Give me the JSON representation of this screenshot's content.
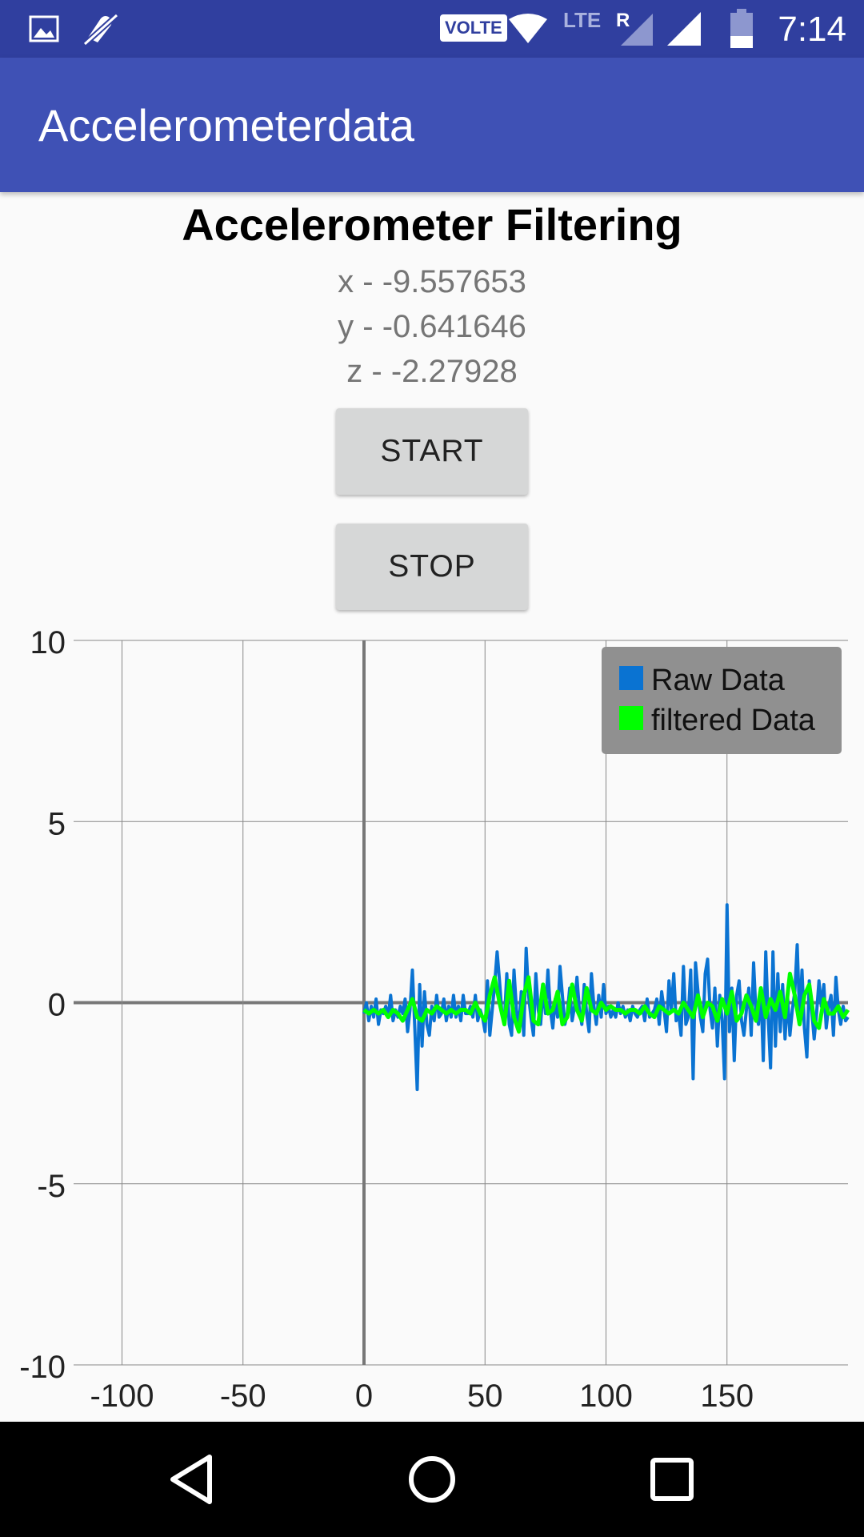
{
  "status_bar": {
    "time": "7:14",
    "volte_label": "VOLTE",
    "network_label": "LTE",
    "roaming_label": "R",
    "icons": [
      "gallery-icon",
      "mute-icon",
      "wifi-icon",
      "signal-icon",
      "battery-icon"
    ]
  },
  "app_bar": {
    "title": "Accelerometerdata"
  },
  "main": {
    "heading": "Accelerometer Filtering",
    "x_reading": "x - -9.557653",
    "y_reading": "y - -0.641646",
    "z_reading": "z - -2.27928",
    "start_label": "START",
    "stop_label": "STOP"
  },
  "chart_data": {
    "type": "line",
    "title": "",
    "xlabel": "",
    "ylabel": "",
    "xlim": [
      -120,
      200
    ],
    "ylim": [
      -10,
      10
    ],
    "x_ticks": [
      -100,
      -50,
      0,
      50,
      100,
      150
    ],
    "y_ticks": [
      10,
      5,
      0,
      -5,
      -10
    ],
    "grid": true,
    "legend_position": "top-right",
    "legend_background": "#909090",
    "series": [
      {
        "name": "Raw Data",
        "color": "#0a73d2",
        "x": [
          0,
          1,
          2,
          3,
          4,
          5,
          6,
          7,
          8,
          9,
          10,
          11,
          12,
          13,
          14,
          15,
          16,
          17,
          18,
          19,
          20,
          21,
          22,
          23,
          24,
          25,
          26,
          27,
          28,
          29,
          30,
          31,
          32,
          33,
          34,
          35,
          36,
          37,
          38,
          39,
          40,
          41,
          42,
          43,
          44,
          45,
          46,
          47,
          48,
          49,
          50,
          51,
          52,
          53,
          54,
          55,
          56,
          57,
          58,
          59,
          60,
          61,
          62,
          63,
          64,
          65,
          66,
          67,
          68,
          69,
          70,
          71,
          72,
          73,
          74,
          75,
          76,
          77,
          78,
          79,
          80,
          81,
          82,
          83,
          84,
          85,
          86,
          87,
          88,
          89,
          90,
          91,
          92,
          93,
          94,
          95,
          96,
          97,
          98,
          99,
          100,
          101,
          102,
          103,
          104,
          105,
          106,
          107,
          108,
          109,
          110,
          111,
          112,
          113,
          114,
          115,
          116,
          117,
          118,
          119,
          120,
          121,
          122,
          123,
          124,
          125,
          126,
          127,
          128,
          129,
          130,
          131,
          132,
          133,
          134,
          135,
          136,
          137,
          138,
          139,
          140,
          141,
          142,
          143,
          144,
          145,
          146,
          147,
          148,
          149,
          150,
          151,
          152,
          153,
          154,
          155,
          156,
          157,
          158,
          159,
          160,
          161,
          162,
          163,
          164,
          165,
          166,
          167,
          168,
          169,
          170,
          171,
          172,
          173,
          174,
          175,
          176,
          177,
          178,
          179,
          180,
          181,
          182,
          183,
          184,
          185,
          186,
          187,
          188,
          189,
          190,
          191,
          192,
          193,
          194,
          195,
          196,
          197,
          198,
          199,
          200
        ],
        "y": [
          -0.3,
          0,
          -0.5,
          -0.1,
          -0.4,
          0.1,
          -0.6,
          -0.2,
          -0.3,
          -0.1,
          -0.4,
          0.2,
          -0.5,
          -0.2,
          -0.4,
          -0.1,
          -0.3,
          0.1,
          -0.8,
          -0.2,
          0.9,
          -0.7,
          -2.4,
          0.5,
          -1.2,
          0.3,
          -0.6,
          -0.9,
          -0.1,
          -0.5,
          0.2,
          -0.4,
          -0.3,
          0.1,
          -0.5,
          -0.1,
          -0.4,
          0.2,
          -0.4,
          -0.1,
          -0.5,
          0.2,
          -0.3,
          -0.3,
          -0.1,
          -0.4,
          0.2,
          -0.5,
          -0.2,
          -0.4,
          -0.8,
          0.6,
          -0.9,
          -0.2,
          0.5,
          1.4,
          0.6,
          -0.3,
          -0.5,
          0.8,
          -0.6,
          -0.9,
          0.9,
          -0.2,
          -0.7,
          0.3,
          -0.9,
          1.5,
          0.2,
          -0.4,
          -0.9,
          0.8,
          -0.2,
          -0.6,
          0.4,
          -0.3,
          0.9,
          -0.2,
          -0.7,
          0.1,
          -0.4,
          1.0,
          0.2,
          -0.6,
          -0.3,
          0.4,
          -0.5,
          -0.1,
          0.7,
          -0.2,
          -0.6,
          0.5,
          -0.3,
          -0.8,
          0.8,
          -0.1,
          -0.6,
          0.2,
          -0.4,
          0.5,
          -0.3,
          -0.1,
          -0.4,
          -0.2,
          -0.4,
          0,
          -0.3,
          -0.1,
          -0.4,
          -0.2,
          -0.5,
          -0.1,
          -0.3,
          -0.4,
          -0.2,
          -0.1,
          -0.5,
          0.1,
          -0.4,
          -0.3,
          -0.2,
          0.1,
          -0.6,
          0.3,
          -0.2,
          -0.8,
          0.6,
          -0.2,
          0.8,
          -0.5,
          -0.3,
          -0.9,
          1.0,
          -0.6,
          -0.4,
          0.9,
          -2.1,
          1.1,
          0.3,
          -0.4,
          -0.8,
          0.8,
          1.2,
          -0.2,
          -0.7,
          0.4,
          -1.2,
          0.2,
          -0.5,
          -2.1,
          2.7,
          -0.8,
          0.4,
          -1.6,
          0.2,
          0.6,
          -0.5,
          -0.9,
          -0.2,
          0.4,
          -0.9,
          1.1,
          -0.3,
          -0.6,
          0.4,
          -1.6,
          1.4,
          -0.4,
          -1.8,
          1.4,
          -1.2,
          0.8,
          -0.8,
          0.5,
          -1.0,
          0.2,
          -0.9,
          -0.2,
          0.3,
          1.6,
          -0.4,
          0.9,
          -0.7,
          -1.5,
          0.6,
          -0.2,
          -1.0,
          -0.3,
          0.6,
          -0.1,
          0.5,
          -0.7,
          -0.1,
          0.2,
          -0.9,
          0.7,
          -0.2,
          -0.6,
          -0.1,
          -0.5,
          -0.4
        ]
      },
      {
        "name": "filtered Data",
        "color": "#00ff00",
        "x": [
          0,
          2,
          4,
          6,
          8,
          10,
          12,
          14,
          16,
          18,
          20,
          22,
          24,
          26,
          28,
          30,
          32,
          34,
          36,
          38,
          40,
          42,
          44,
          46,
          48,
          50,
          52,
          54,
          56,
          58,
          60,
          62,
          64,
          66,
          68,
          70,
          72,
          74,
          76,
          78,
          80,
          82,
          84,
          86,
          88,
          90,
          92,
          94,
          96,
          98,
          100,
          102,
          104,
          106,
          108,
          110,
          112,
          114,
          116,
          118,
          120,
          122,
          124,
          126,
          128,
          130,
          132,
          134,
          136,
          138,
          140,
          142,
          144,
          146,
          148,
          150,
          152,
          154,
          156,
          158,
          160,
          162,
          164,
          166,
          168,
          170,
          172,
          174,
          176,
          178,
          180,
          182,
          184,
          186,
          188,
          190,
          192,
          194,
          196,
          198,
          200
        ],
        "y": [
          -0.2,
          -0.3,
          -0.2,
          -0.3,
          -0.2,
          -0.4,
          -0.2,
          -0.3,
          -0.5,
          -0.2,
          0.1,
          -0.4,
          -0.5,
          -0.2,
          -0.3,
          -0.1,
          -0.2,
          -0.3,
          -0.2,
          -0.3,
          -0.2,
          -0.2,
          -0.3,
          0,
          -0.3,
          -0.5,
          0.2,
          0.7,
          0,
          -0.6,
          0.6,
          -0.4,
          -0.8,
          0.2,
          0.7,
          -0.5,
          -0.6,
          0.5,
          -0.3,
          -0.2,
          0.3,
          -0.6,
          -0.4,
          0.5,
          -0.2,
          -0.5,
          0.4,
          -0.2,
          -0.3,
          0,
          -0.2,
          -0.1,
          -0.2,
          -0.2,
          -0.3,
          -0.2,
          -0.2,
          -0.3,
          -0.1,
          -0.3,
          -0.4,
          -0.1,
          -0.2,
          -0.3,
          -0.2,
          -0.3,
          0,
          -0.2,
          -0.4,
          0.2,
          -0.4,
          0,
          -0.1,
          -0.5,
          0.1,
          -0.3,
          0.3,
          -0.5,
          -0.3,
          0.2,
          -0.1,
          -0.5,
          0.4,
          -0.4,
          0.1,
          -0.2,
          0.3,
          -0.4,
          0.8,
          0.2,
          -0.6,
          0.2,
          0.5,
          -0.5,
          -0.7,
          0.1,
          -0.3,
          -0.3,
          -0.1,
          -0.4,
          -0.2
        ]
      }
    ]
  }
}
